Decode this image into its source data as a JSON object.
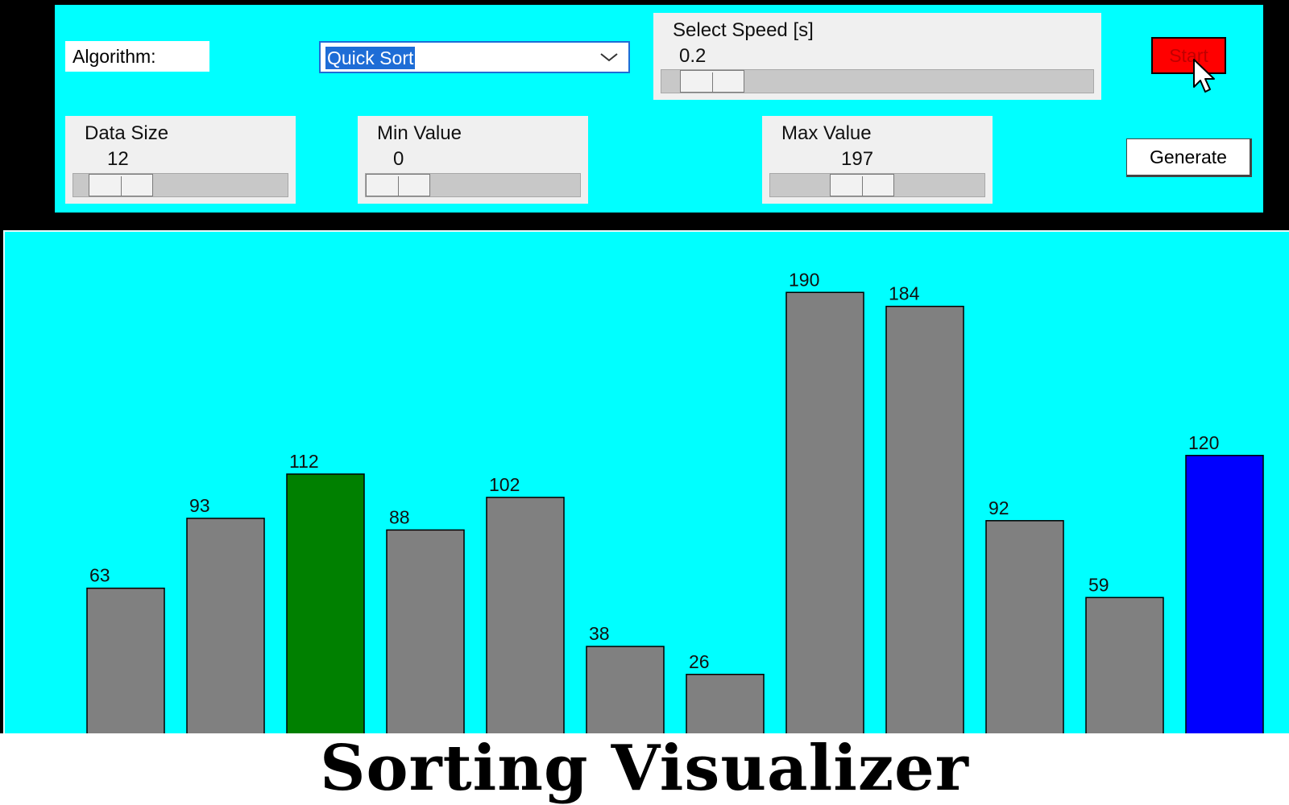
{
  "controls": {
    "algorithm_label": "Algorithm:",
    "algorithm_value": "Quick Sort",
    "speed": {
      "title": "Select Speed [s]",
      "value": "0.2",
      "level": 0.05
    },
    "data_size": {
      "title": "Data Size",
      "value": "12",
      "level": 0.1
    },
    "min_value": {
      "title": "Min Value",
      "value": "0",
      "level": 0.0
    },
    "max_value": {
      "title": "Max Value",
      "value": "197",
      "level": 0.4
    },
    "start_label": "Start",
    "generate_label": "Generate"
  },
  "colors": {
    "panel_bg": "#00ffff",
    "bar_default": "#808080",
    "bar_pivot": "#0000ff",
    "bar_active": "#008000",
    "start_button": "#ff0000"
  },
  "icons": {
    "combo_arrow": "chevron-down-icon",
    "pointer": "mouse-cursor-icon"
  },
  "chart_data": {
    "type": "bar",
    "title": "",
    "values": [
      63,
      93,
      112,
      88,
      102,
      38,
      26,
      190,
      184,
      92,
      59,
      120
    ],
    "colors": [
      "#808080",
      "#808080",
      "#008000",
      "#808080",
      "#808080",
      "#808080",
      "#808080",
      "#808080",
      "#808080",
      "#808080",
      "#808080",
      "#0000ff"
    ],
    "ylim": [
      0,
      197
    ],
    "grid": false,
    "legend": "none"
  },
  "title": "Sorting Visualizer"
}
